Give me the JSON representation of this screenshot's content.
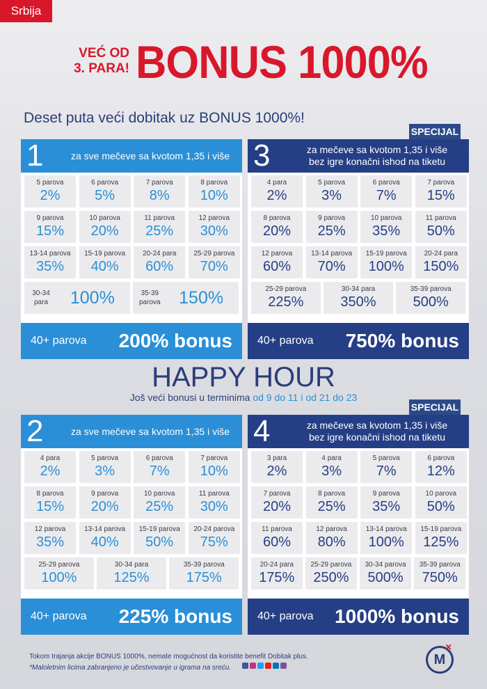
{
  "header": {
    "region_tag": "Srbija",
    "title_small_line1": "VEĆ OD",
    "title_small_line2": "3. PARA!",
    "title_big": "BONUS 1000%",
    "subtitle": "Deset puta veći dobitak uz BONUS 1000%!"
  },
  "special_label": "SPECIJAL",
  "panels": [
    {
      "number": "1",
      "desc_line1": "za sve mečeve sa kvotom 1,35 i više",
      "desc_line2": "",
      "cells": [
        {
          "label": "5 parova",
          "value": "2%"
        },
        {
          "label": "6 parova",
          "value": "5%"
        },
        {
          "label": "7 parova",
          "value": "8%"
        },
        {
          "label": "8 parova",
          "value": "10%"
        },
        {
          "label": "9 parova",
          "value": "15%"
        },
        {
          "label": "10 parova",
          "value": "20%"
        },
        {
          "label": "11 parova",
          "value": "25%"
        },
        {
          "label": "12 parova",
          "value": "30%"
        },
        {
          "label": "13-14 parova",
          "value": "35%"
        },
        {
          "label": "15-19 parova",
          "value": "40%"
        },
        {
          "label": "20-24 para",
          "value": "60%"
        },
        {
          "label": "25-29 parova",
          "value": "70%"
        },
        {
          "label": "30-34 para",
          "value": "100%"
        },
        {
          "label": "35-39 parova",
          "value": "150%"
        }
      ],
      "footer_left": "40+ parova",
      "footer_right": "200% bonus"
    },
    {
      "number": "3",
      "desc_line1": "za mečeve sa kvotom 1,35 i više",
      "desc_line2": "bez igre konačni ishod na tiketu",
      "cells": [
        {
          "label": "4 para",
          "value": "2%"
        },
        {
          "label": "5 parova",
          "value": "3%"
        },
        {
          "label": "6 parova",
          "value": "7%"
        },
        {
          "label": "7 parova",
          "value": "15%"
        },
        {
          "label": "8 parova",
          "value": "20%"
        },
        {
          "label": "9 parova",
          "value": "25%"
        },
        {
          "label": "10 parova",
          "value": "35%"
        },
        {
          "label": "11 parova",
          "value": "50%"
        },
        {
          "label": "12 parova",
          "value": "60%"
        },
        {
          "label": "13-14 parova",
          "value": "70%"
        },
        {
          "label": "15-19 parova",
          "value": "100%"
        },
        {
          "label": "20-24 para",
          "value": "150%"
        },
        {
          "label": "25-29 parova",
          "value": "225%"
        },
        {
          "label": "30-34 para",
          "value": "350%"
        },
        {
          "label": "35-39 parova",
          "value": "500%"
        }
      ],
      "footer_left": "40+ parova",
      "footer_right": "750% bonus"
    },
    {
      "number": "2",
      "desc_line1": "za sve mečeve sa kvotom 1,35 i više",
      "desc_line2": "",
      "cells": [
        {
          "label": "4 para",
          "value": "2%"
        },
        {
          "label": "5 parova",
          "value": "3%"
        },
        {
          "label": "6 parova",
          "value": "7%"
        },
        {
          "label": "7 parova",
          "value": "10%"
        },
        {
          "label": "8 parova",
          "value": "15%"
        },
        {
          "label": "9 parova",
          "value": "20%"
        },
        {
          "label": "10 parova",
          "value": "25%"
        },
        {
          "label": "11 parova",
          "value": "30%"
        },
        {
          "label": "12 parova",
          "value": "35%"
        },
        {
          "label": "13-14 parova",
          "value": "40%"
        },
        {
          "label": "15-19 parova",
          "value": "50%"
        },
        {
          "label": "20-24 parova",
          "value": "75%"
        },
        {
          "label": "25-29 parova",
          "value": "100%"
        },
        {
          "label": "30-34 para",
          "value": "125%"
        },
        {
          "label": "35-39 parova",
          "value": "175%"
        }
      ],
      "footer_left": "40+ parova",
      "footer_right": "225% bonus"
    },
    {
      "number": "4",
      "desc_line1": "za mečeve sa kvotom 1,35 i više",
      "desc_line2": "bez igre konačni ishod na tiketu",
      "cells": [
        {
          "label": "3 para",
          "value": "2%"
        },
        {
          "label": "4 para",
          "value": "3%"
        },
        {
          "label": "5 parova",
          "value": "7%"
        },
        {
          "label": "6 parova",
          "value": "12%"
        },
        {
          "label": "7 parova",
          "value": "20%"
        },
        {
          "label": "8 parova",
          "value": "25%"
        },
        {
          "label": "9 parova",
          "value": "35%"
        },
        {
          "label": "10 parova",
          "value": "50%"
        },
        {
          "label": "11 parova",
          "value": "60%"
        },
        {
          "label": "12 parova",
          "value": "80%"
        },
        {
          "label": "13-14 parova",
          "value": "100%"
        },
        {
          "label": "15-19 parova",
          "value": "125%"
        },
        {
          "label": "20-24 para",
          "value": "175%"
        },
        {
          "label": "25-29 parova",
          "value": "250%"
        },
        {
          "label": "30-34 parova",
          "value": "500%"
        },
        {
          "label": "35-39 parova",
          "value": "750%"
        }
      ],
      "footer_left": "40+ parova",
      "footer_right": "1000% bonus"
    }
  ],
  "happy_hour": {
    "title": "HAPPY HOUR",
    "subtitle_prefix": "Još veći bonusi u terminima ",
    "subtitle_highlight": "od 9 do 11 i od 21 do 23"
  },
  "footer": {
    "note1": "Tokom trajanja akcije BONUS 1000%, nemate mogućnost da koristite benefit Dobitak plus.",
    "note2": "*Maloletnim licima zabranjeno je učestvovanje u igrama na sreću.",
    "logo_text": "M",
    "logo_mark": "×"
  },
  "colors": {
    "red": "#d9172a",
    "light_blue": "#2a8fd6",
    "dark_blue": "#253f86"
  }
}
